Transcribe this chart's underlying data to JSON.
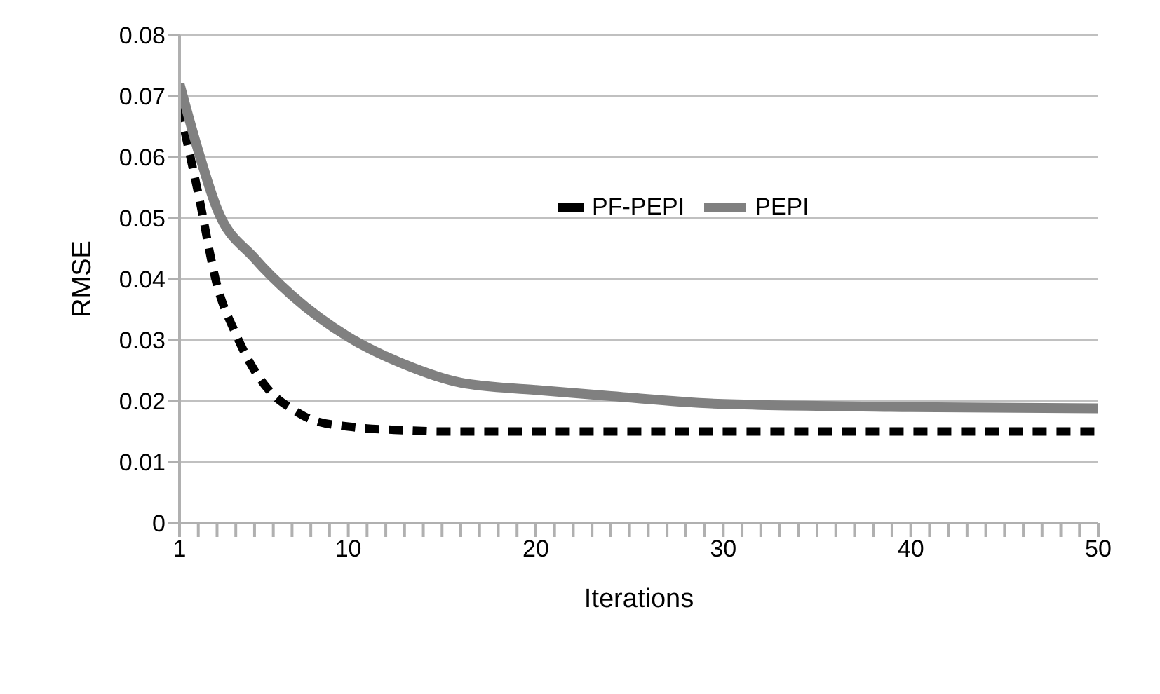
{
  "chart_data": {
    "type": "line",
    "xlabel": "Iterations",
    "ylabel": "RMSE",
    "xlim": [
      1,
      50
    ],
    "xticks": [
      1,
      {
        "value": 2,
        "label": null
      },
      {
        "value": 3,
        "label": null
      },
      {
        "value": 4,
        "label": null
      },
      {
        "value": 5,
        "label": null
      },
      {
        "value": 6,
        "label": null
      },
      {
        "value": 7,
        "label": null
      },
      {
        "value": 8,
        "label": null
      },
      {
        "value": 9,
        "label": null
      },
      10,
      {
        "value": 11,
        "label": null
      },
      {
        "value": 12,
        "label": null
      },
      {
        "value": 13,
        "label": null
      },
      {
        "value": 14,
        "label": null
      },
      {
        "value": 15,
        "label": null
      },
      {
        "value": 16,
        "label": null
      },
      {
        "value": 17,
        "label": null
      },
      {
        "value": 18,
        "label": null
      },
      {
        "value": 19,
        "label": null
      },
      20,
      {
        "value": 21,
        "label": null
      },
      {
        "value": 22,
        "label": null
      },
      {
        "value": 23,
        "label": null
      },
      {
        "value": 24,
        "label": null
      },
      {
        "value": 25,
        "label": null
      },
      {
        "value": 26,
        "label": null
      },
      {
        "value": 27,
        "label": null
      },
      {
        "value": 28,
        "label": null
      },
      {
        "value": 29,
        "label": null
      },
      30,
      {
        "value": 31,
        "label": null
      },
      {
        "value": 32,
        "label": null
      },
      {
        "value": 33,
        "label": null
      },
      {
        "value": 34,
        "label": null
      },
      {
        "value": 35,
        "label": null
      },
      {
        "value": 36,
        "label": null
      },
      {
        "value": 37,
        "label": null
      },
      {
        "value": 38,
        "label": null
      },
      {
        "value": 39,
        "label": null
      },
      40,
      {
        "value": 41,
        "label": null
      },
      {
        "value": 42,
        "label": null
      },
      {
        "value": 43,
        "label": null
      },
      {
        "value": 44,
        "label": null
      },
      {
        "value": 45,
        "label": null
      },
      {
        "value": 46,
        "label": null
      },
      {
        "value": 47,
        "label": null
      },
      {
        "value": 48,
        "label": null
      },
      {
        "value": 49,
        "label": null
      },
      50
    ],
    "ylim": [
      0,
      0.08
    ],
    "yticks": [
      0,
      0.01,
      0.02,
      0.03,
      0.04,
      0.05,
      0.06,
      0.07,
      0.08
    ],
    "grid": "y",
    "legend": "top",
    "marker": "none",
    "series": [
      {
        "name": "PF-PEPI",
        "color": "#000000",
        "line_style": "dashed",
        "x": [
          1,
          2,
          3,
          4,
          5,
          6,
          7,
          8,
          10,
          13,
          15,
          20,
          30,
          40,
          50
        ],
        "values": [
          0.068,
          0.054,
          0.039,
          0.031,
          0.025,
          0.021,
          0.0187,
          0.017,
          0.0158,
          0.0152,
          0.015,
          0.015,
          0.015,
          0.015,
          0.015
        ]
      },
      {
        "name": "PEPI",
        "color": "#808080",
        "line_style": "solid",
        "x": [
          1,
          2,
          3,
          5,
          7,
          10,
          13,
          16,
          20,
          24,
          30,
          40,
          50
        ],
        "values": [
          0.072,
          0.061,
          0.0515,
          0.0434,
          0.0373,
          0.0305,
          0.026,
          0.023,
          0.0218,
          0.0208,
          0.0195,
          0.019,
          0.0188
        ]
      }
    ]
  }
}
